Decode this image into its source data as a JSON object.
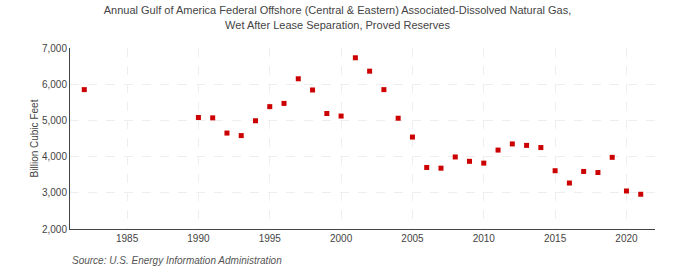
{
  "chart_data": {
    "type": "scatter",
    "title": "Annual Gulf of America Federal Offshore (Central & Eastern) Associated-Dissolved Natural Gas,\nWet After Lease Separation, Proved Reserves",
    "ylabel": "Billion Cubic Feet",
    "annotations": [
      "Source: U.S. Energy Information Administration"
    ],
    "x": [
      1982,
      1990,
      1991,
      1992,
      1993,
      1994,
      1995,
      1996,
      1997,
      1998,
      1999,
      2000,
      2001,
      2002,
      2003,
      2004,
      2005,
      2006,
      2007,
      2008,
      2009,
      2010,
      2011,
      2012,
      2013,
      2014,
      2015,
      2016,
      2017,
      2018,
      2019,
      2020,
      2021
    ],
    "values": [
      5850,
      5080,
      5070,
      4650,
      4580,
      4990,
      5380,
      5470,
      6150,
      5840,
      5190,
      5120,
      6730,
      6360,
      5850,
      5060,
      4540,
      3700,
      3680,
      3990,
      3870,
      3820,
      4180,
      4350,
      4310,
      4250,
      3610,
      3270,
      3590,
      3560,
      3980,
      3050,
      2960
    ],
    "color": "#cc0000",
    "marker": "square",
    "xlim": [
      1981,
      2022
    ],
    "xticks": [
      1985,
      1990,
      1995,
      2000,
      2005,
      2010,
      2015,
      2020
    ],
    "ylim": [
      2000,
      7000
    ],
    "yticks": [
      {
        "value": 2000,
        "label": "2,000"
      },
      {
        "value": 3000,
        "label": "3,000"
      },
      {
        "value": 4000,
        "label": "4,000"
      },
      {
        "value": 5000,
        "label": "5,000"
      },
      {
        "value": 6000,
        "label": "6,000"
      },
      {
        "value": 7000,
        "label": "7,000"
      }
    ],
    "grid": true
  }
}
